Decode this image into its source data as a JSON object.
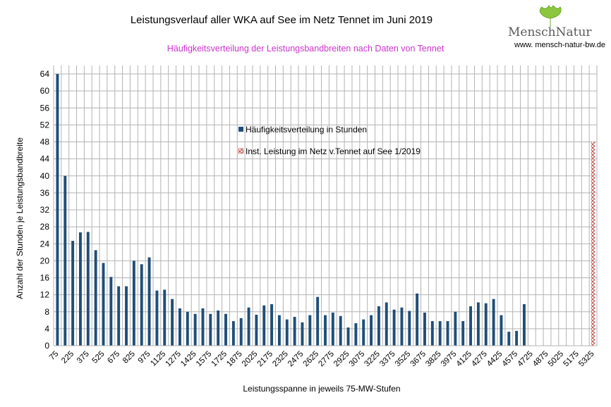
{
  "header": {
    "title": "Leistungsverlauf aller WKA auf See im Netz Tennet im Juni 2019",
    "subtitle": "Häufigkeitsverteilung der Leistungsbandbreiten nach Daten von Tennet"
  },
  "logo": {
    "name": "MenschNatur",
    "url": "www. mensch-natur-bw.de",
    "leaf_color": "#8cc63f"
  },
  "chart_data": {
    "type": "bar",
    "title": "Leistungsverlauf aller WKA auf See im Netz Tennet im Juni 2019",
    "subtitle": "Häufigkeitsverteilung der Leistungsbandbreiten nach Daten von Tennet",
    "xlabel": "Leistungsspanne in jeweils 75-MW-Stufen",
    "ylabel": "Anzahl der Stunden je Leistungsbandbreite",
    "ylim": [
      0,
      66
    ],
    "yticks": [
      0,
      4,
      8,
      12,
      16,
      20,
      24,
      28,
      32,
      36,
      40,
      44,
      48,
      52,
      56,
      60,
      64
    ],
    "grid": true,
    "x_tick_labels": [
      "75",
      "225",
      "375",
      "525",
      "675",
      "825",
      "975",
      "1125",
      "1275",
      "1425",
      "1575",
      "1725",
      "1875",
      "2025",
      "2175",
      "2325",
      "2475",
      "2625",
      "2775",
      "2925",
      "3075",
      "3225",
      "3375",
      "3525",
      "3675",
      "3825",
      "3975",
      "4125",
      "4275",
      "4425",
      "4575",
      "4725",
      "4875",
      "5025",
      "5175",
      "5325"
    ],
    "categories": [
      75,
      150,
      225,
      300,
      375,
      450,
      525,
      600,
      675,
      750,
      825,
      900,
      975,
      1050,
      1125,
      1200,
      1275,
      1350,
      1425,
      1500,
      1575,
      1650,
      1725,
      1800,
      1875,
      1950,
      2025,
      2100,
      2175,
      2250,
      2325,
      2400,
      2475,
      2550,
      2625,
      2700,
      2775,
      2850,
      2925,
      3000,
      3075,
      3150,
      3225,
      3300,
      3375,
      3450,
      3525,
      3600,
      3675,
      3750,
      3825,
      3900,
      3975,
      4050,
      4125,
      4200,
      4275,
      4350,
      4425,
      4500,
      4575,
      4650,
      4725,
      4800,
      4875,
      4950,
      5025,
      5100,
      5175,
      5250,
      5325
    ],
    "series": [
      {
        "name": "Häufigkeitsverteilung in Stunden",
        "color": "#1f4e79",
        "values": [
          64,
          40,
          24.7,
          26.7,
          26.8,
          22.5,
          19.5,
          16.2,
          14,
          14,
          20,
          19.2,
          20.8,
          13,
          13.2,
          11,
          8.8,
          8,
          7.5,
          8.8,
          7.5,
          8.3,
          7.5,
          5.8,
          6.5,
          9,
          7.3,
          9.5,
          9.8,
          7.2,
          6.2,
          6.8,
          5.5,
          7.2,
          11.5,
          7.2,
          7.8,
          7,
          4.3,
          5.3,
          6.2,
          7.2,
          9.3,
          10.2,
          8.5,
          9,
          8.2,
          12.3,
          7.8,
          5.8,
          5.8,
          5.8,
          8,
          5.8,
          9.3,
          10.2,
          10,
          11,
          7.2,
          3.3,
          3.5,
          9.8,
          0,
          0,
          0,
          0,
          0,
          0,
          0,
          0,
          0
        ]
      },
      {
        "name": "Inst. Leistung im Netz v.Tennet auf See 1/2019",
        "color": "#c0504d",
        "pattern": "crosshatch",
        "category": 5325,
        "value": 48
      }
    ],
    "legend": "inside-upper-center"
  }
}
